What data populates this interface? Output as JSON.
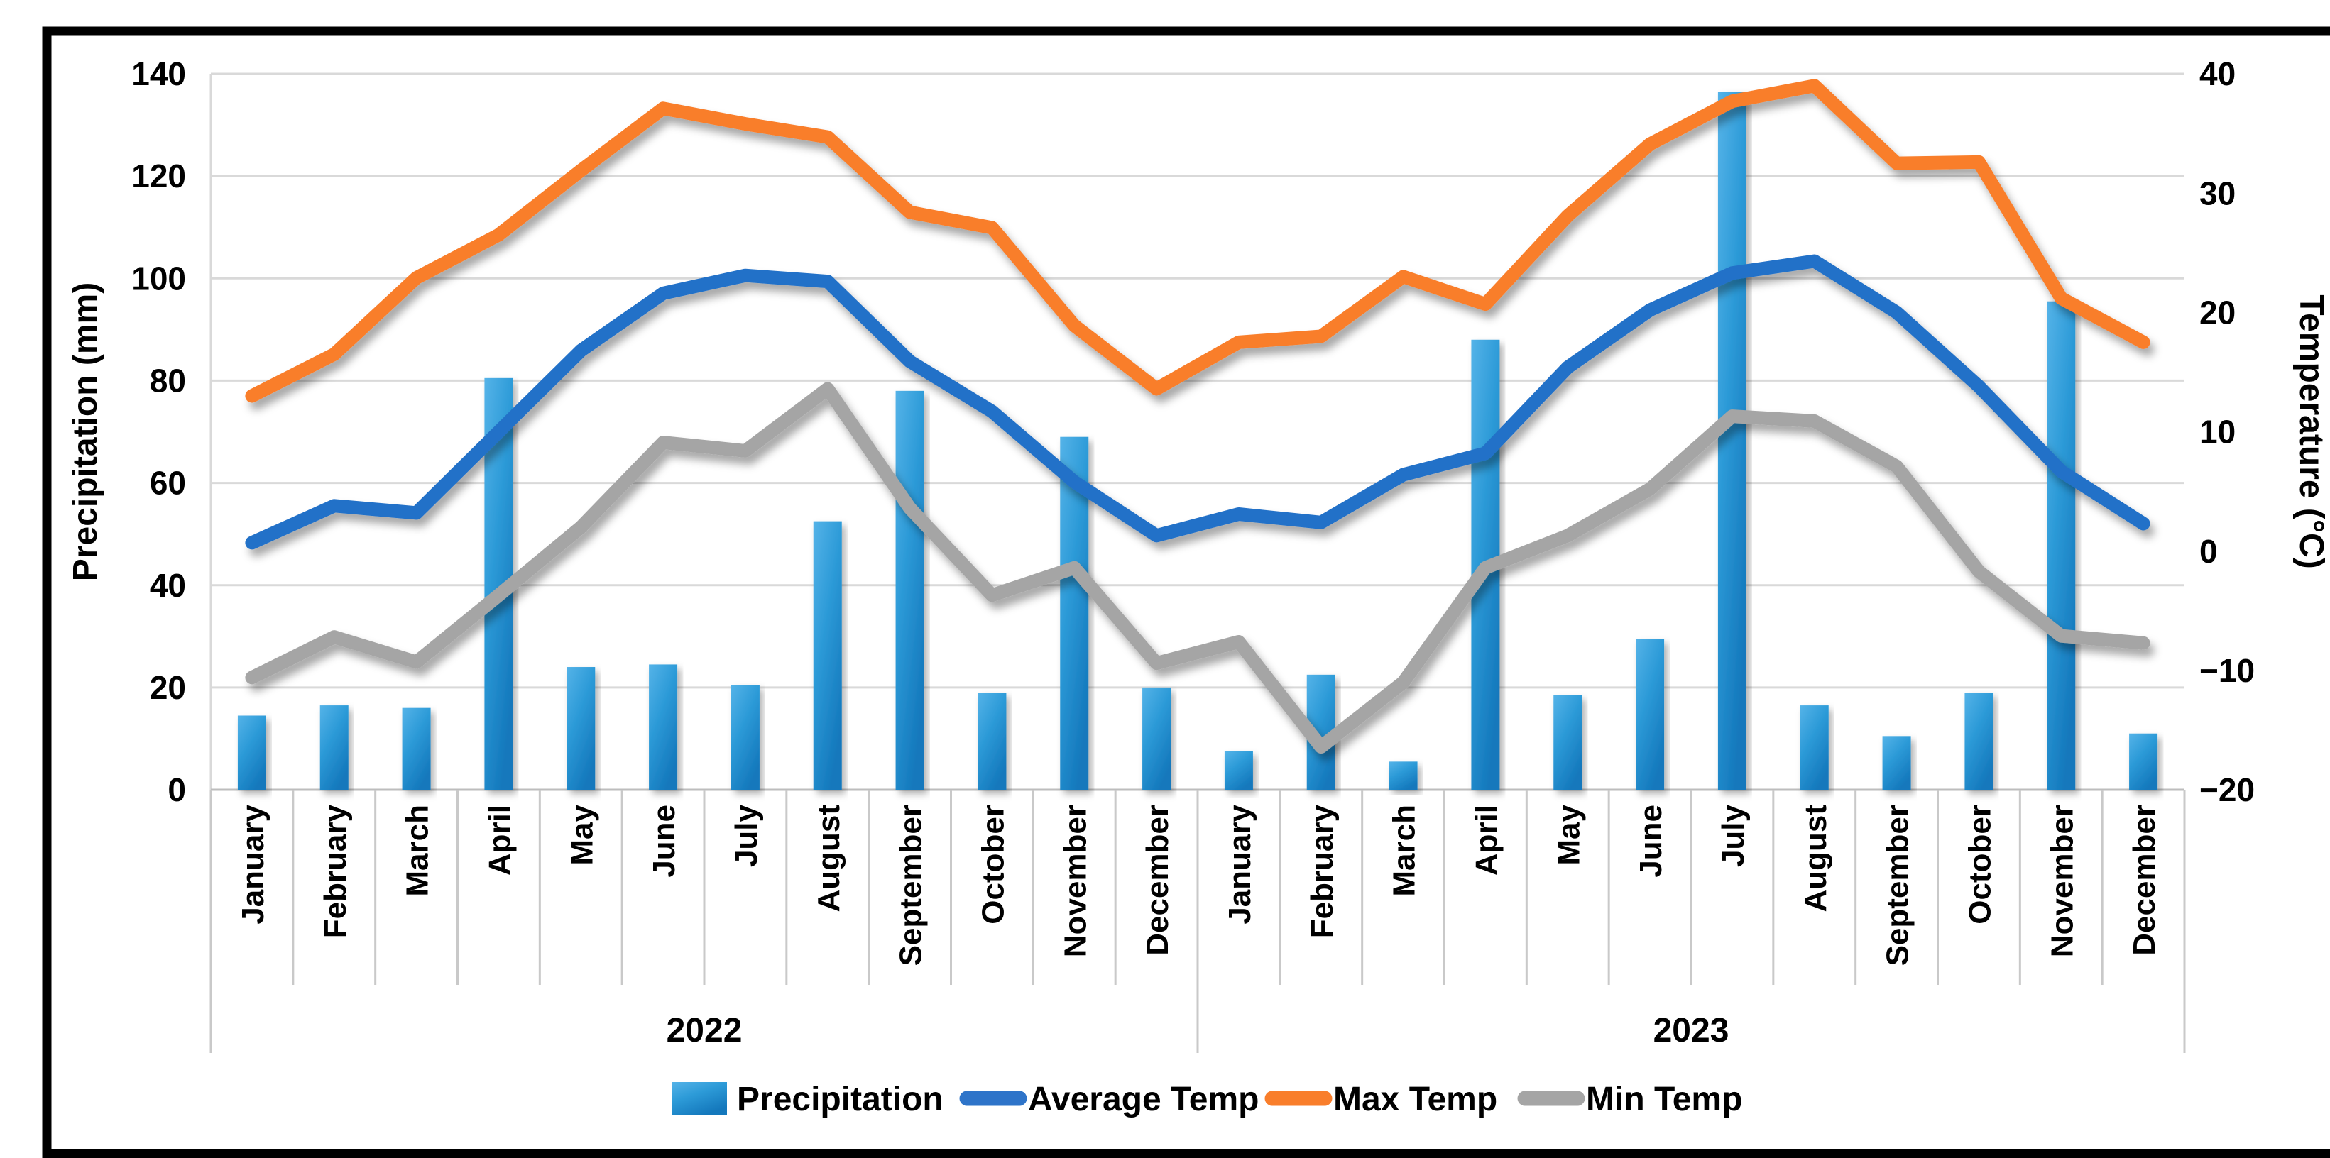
{
  "page": {
    "background": "#ffffff",
    "outer_border_color": "#000000"
  },
  "chart_data": {
    "type": "bar",
    "subtype": "combo-bar-and-lines",
    "title": "",
    "x_axis": {
      "month_labels": [
        "January",
        "February",
        "March",
        "April",
        "May",
        "June",
        "July",
        "August",
        "September",
        "October",
        "November",
        "December"
      ],
      "year_group_labels": [
        "2022",
        "2023"
      ]
    },
    "left_axis": {
      "title": "Precipitation (mm)",
      "min": 0,
      "max": 140,
      "tick_step": 20,
      "ticks": [
        140,
        120,
        100,
        80,
        60,
        40,
        20,
        0
      ]
    },
    "right_axis": {
      "title": "Temperature (°C)",
      "min": -20,
      "max": 40,
      "tick_step": 10,
      "ticks": [
        40,
        30,
        20,
        10,
        0,
        -10,
        -20
      ]
    },
    "grid": true,
    "colors": {
      "bar_top": "#55B3E8",
      "bar_mid": "#2D9BD8",
      "bar_bottom": "#1478BC",
      "avg_line": "#2371C8",
      "max_line": "#F97E2B",
      "min_line": "#A5A5A5",
      "gridline": "#D9D9D9",
      "axis_line": "#BDBDBD",
      "divider": "#C9C9C9",
      "text": "#000000"
    },
    "legend": {
      "position": "bottom",
      "items": [
        {
          "label": "Precipitation",
          "swatch": "bar-swatch",
          "color": "#2D9BD8"
        },
        {
          "label": "Average Temp",
          "swatch": "line-swatch",
          "color": "#2E74C9"
        },
        {
          "label": "Max Temp",
          "swatch": "line-swatch",
          "color": "#F97E2B"
        },
        {
          "label": "Min Temp",
          "swatch": "line-swatch",
          "color": "#A5A5A5"
        }
      ]
    },
    "series": [
      {
        "name": "Precipitation",
        "type": "bar",
        "axis": "left",
        "unit": "mm",
        "values_2022": [
          14.5,
          16.5,
          16,
          80.5,
          24,
          24.5,
          20.5,
          52.5,
          78,
          19,
          69,
          20
        ],
        "values_2023": [
          7.5,
          22.5,
          5.5,
          88,
          18.5,
          29.5,
          136.5,
          16.5,
          10.5,
          19,
          95.5,
          11
        ]
      },
      {
        "name": "Average Temp",
        "type": "line",
        "axis": "right",
        "unit": "°C",
        "values_2022": [
          0.7,
          3.8,
          3.2,
          10,
          16.8,
          21.6,
          23.1,
          22.6,
          15.9,
          11.7,
          5.8,
          1.3
        ],
        "values_2023": [
          3.1,
          2.4,
          6.4,
          8.2,
          15.4,
          20.2,
          23.3,
          24.3,
          20,
          13.8,
          6.7,
          2.3
        ]
      },
      {
        "name": "Max Temp",
        "type": "line",
        "axis": "right",
        "unit": "°C",
        "values_2022": [
          13,
          16.5,
          22.9,
          26.5,
          31.9,
          37.1,
          35.8,
          34.7,
          28.4,
          27.1,
          18.9,
          13.6
        ],
        "values_2023": [
          17.5,
          18,
          23,
          20.7,
          28.1,
          34.1,
          37.7,
          39,
          32.5,
          32.6,
          21.2,
          17.5
        ]
      },
      {
        "name": "Min Temp",
        "type": "line",
        "axis": "right",
        "unit": "°C",
        "values_2022": [
          -10.6,
          -7.2,
          -9.3,
          -3.7,
          2,
          9.1,
          8.4,
          13.6,
          3.6,
          -3.7,
          -1.4,
          -9.4
        ],
        "values_2023": [
          -7.6,
          -16.4,
          -11,
          -1.4,
          1.3,
          5.2,
          11.3,
          10.9,
          7.1,
          -1.7,
          -7.1,
          -7.7
        ]
      }
    ]
  }
}
